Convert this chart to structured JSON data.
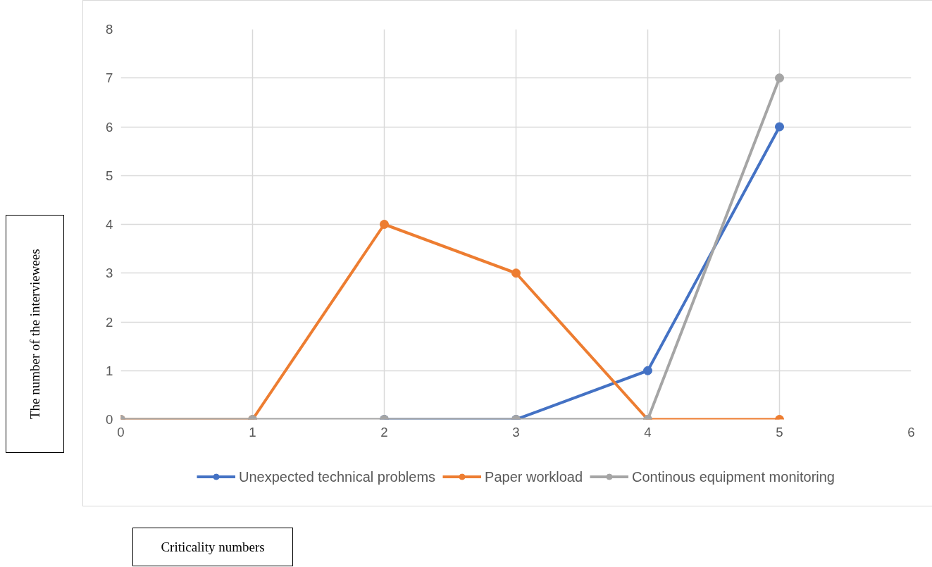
{
  "chart_data": {
    "type": "line",
    "annotations": [
      "The number of the interviewees",
      "Criticality numbers"
    ],
    "x": [
      0,
      1,
      2,
      3,
      4,
      5
    ],
    "series": [
      {
        "name": "Unexpected technical problems",
        "color": "#4472c4",
        "values": [
          null,
          null,
          0,
          0,
          1,
          6
        ]
      },
      {
        "name": "Paper workload",
        "color": "#ed7d31",
        "values": [
          0,
          0,
          4,
          3,
          0,
          0
        ]
      },
      {
        "name": "Continous equipment monitoring",
        "color": "#a5a5a5",
        "values": [
          0,
          0,
          0,
          0,
          0,
          7
        ]
      }
    ],
    "xlim": [
      0,
      6
    ],
    "xticks": [
      0,
      1,
      2,
      3,
      4,
      5,
      6
    ],
    "ylim": [
      0,
      8
    ],
    "yticks": [
      0,
      1,
      2,
      3,
      4,
      5,
      6,
      7,
      8
    ],
    "grid": true,
    "legend": "bottom",
    "marker": "circle",
    "line_style": "solid"
  }
}
